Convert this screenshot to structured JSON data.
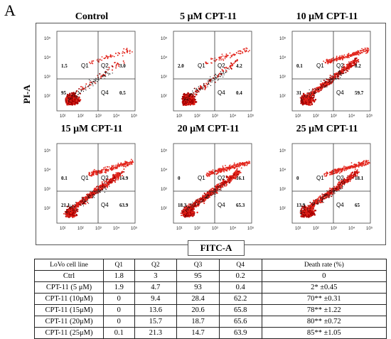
{
  "figure_label": "A",
  "y_axis_label": "PI-A",
  "x_axis_label": "FITC-A",
  "quadrant_labels": [
    "Q1",
    "Q2",
    "Q4"
  ],
  "ticks": {
    "y": [
      "10⁵",
      "10⁴",
      "10³",
      "10²"
    ],
    "x": [
      "10¹",
      "10²",
      "10³",
      "10⁴",
      "10⁵"
    ]
  },
  "panels": [
    {
      "title": "Control",
      "q1": "1.5",
      "q2": "3.0",
      "q3": "95",
      "q4": "0.5"
    },
    {
      "title": "5 μM CPT-11",
      "q1": "2.0",
      "q2": "4.2",
      "q3": "",
      "q4": "0.4"
    },
    {
      "title": "10 μM CPT-11",
      "q1": "0.1",
      "q2": "8.2",
      "q3": "31",
      "q4": "59.7"
    },
    {
      "title": "15 μM CPT-11",
      "q1": "0.1",
      "q2": "14.9",
      "q3": "21.1",
      "q4": "63.9"
    },
    {
      "title": "20 μM CPT-11",
      "q1": "0",
      "q2": "16.1",
      "q3": "18.3",
      "q4": "65.3"
    },
    {
      "title": "25 μM CPT-11",
      "q1": "0",
      "q2": "18.1",
      "q3": "13.9",
      "q4": "65"
    }
  ],
  "table": {
    "headers": [
      "LoVo cell line",
      "Q1",
      "Q2",
      "Q3",
      "Q4",
      "Death rate (%)"
    ],
    "rows": [
      [
        "Ctrl",
        "1.8",
        "3",
        "95",
        "0.2",
        "0"
      ],
      [
        "CPT-11 (5 μM)",
        "1.9",
        "4.7",
        "93",
        "0.4",
        "2* ±0.45"
      ],
      [
        "CPT-11 (10μM)",
        "0",
        "9.4",
        "28.4",
        "62.2",
        "70** ±0.31"
      ],
      [
        "CPT-11 (15μM)",
        "0",
        "13.6",
        "20.6",
        "65.8",
        "78** ±1.22"
      ],
      [
        "CPT-11 (20μM)",
        "0",
        "15.7",
        "18.7",
        "65.6",
        "80** ±0.72"
      ],
      [
        "CPT-11 (25μM)",
        "0.1",
        "21.3",
        "14.7",
        "63.9",
        "85** ±1.05"
      ]
    ]
  },
  "colors": {
    "dots": "#e2231a",
    "dense": "#a80000",
    "black_dots": "#111111",
    "gates": "#333333"
  }
}
